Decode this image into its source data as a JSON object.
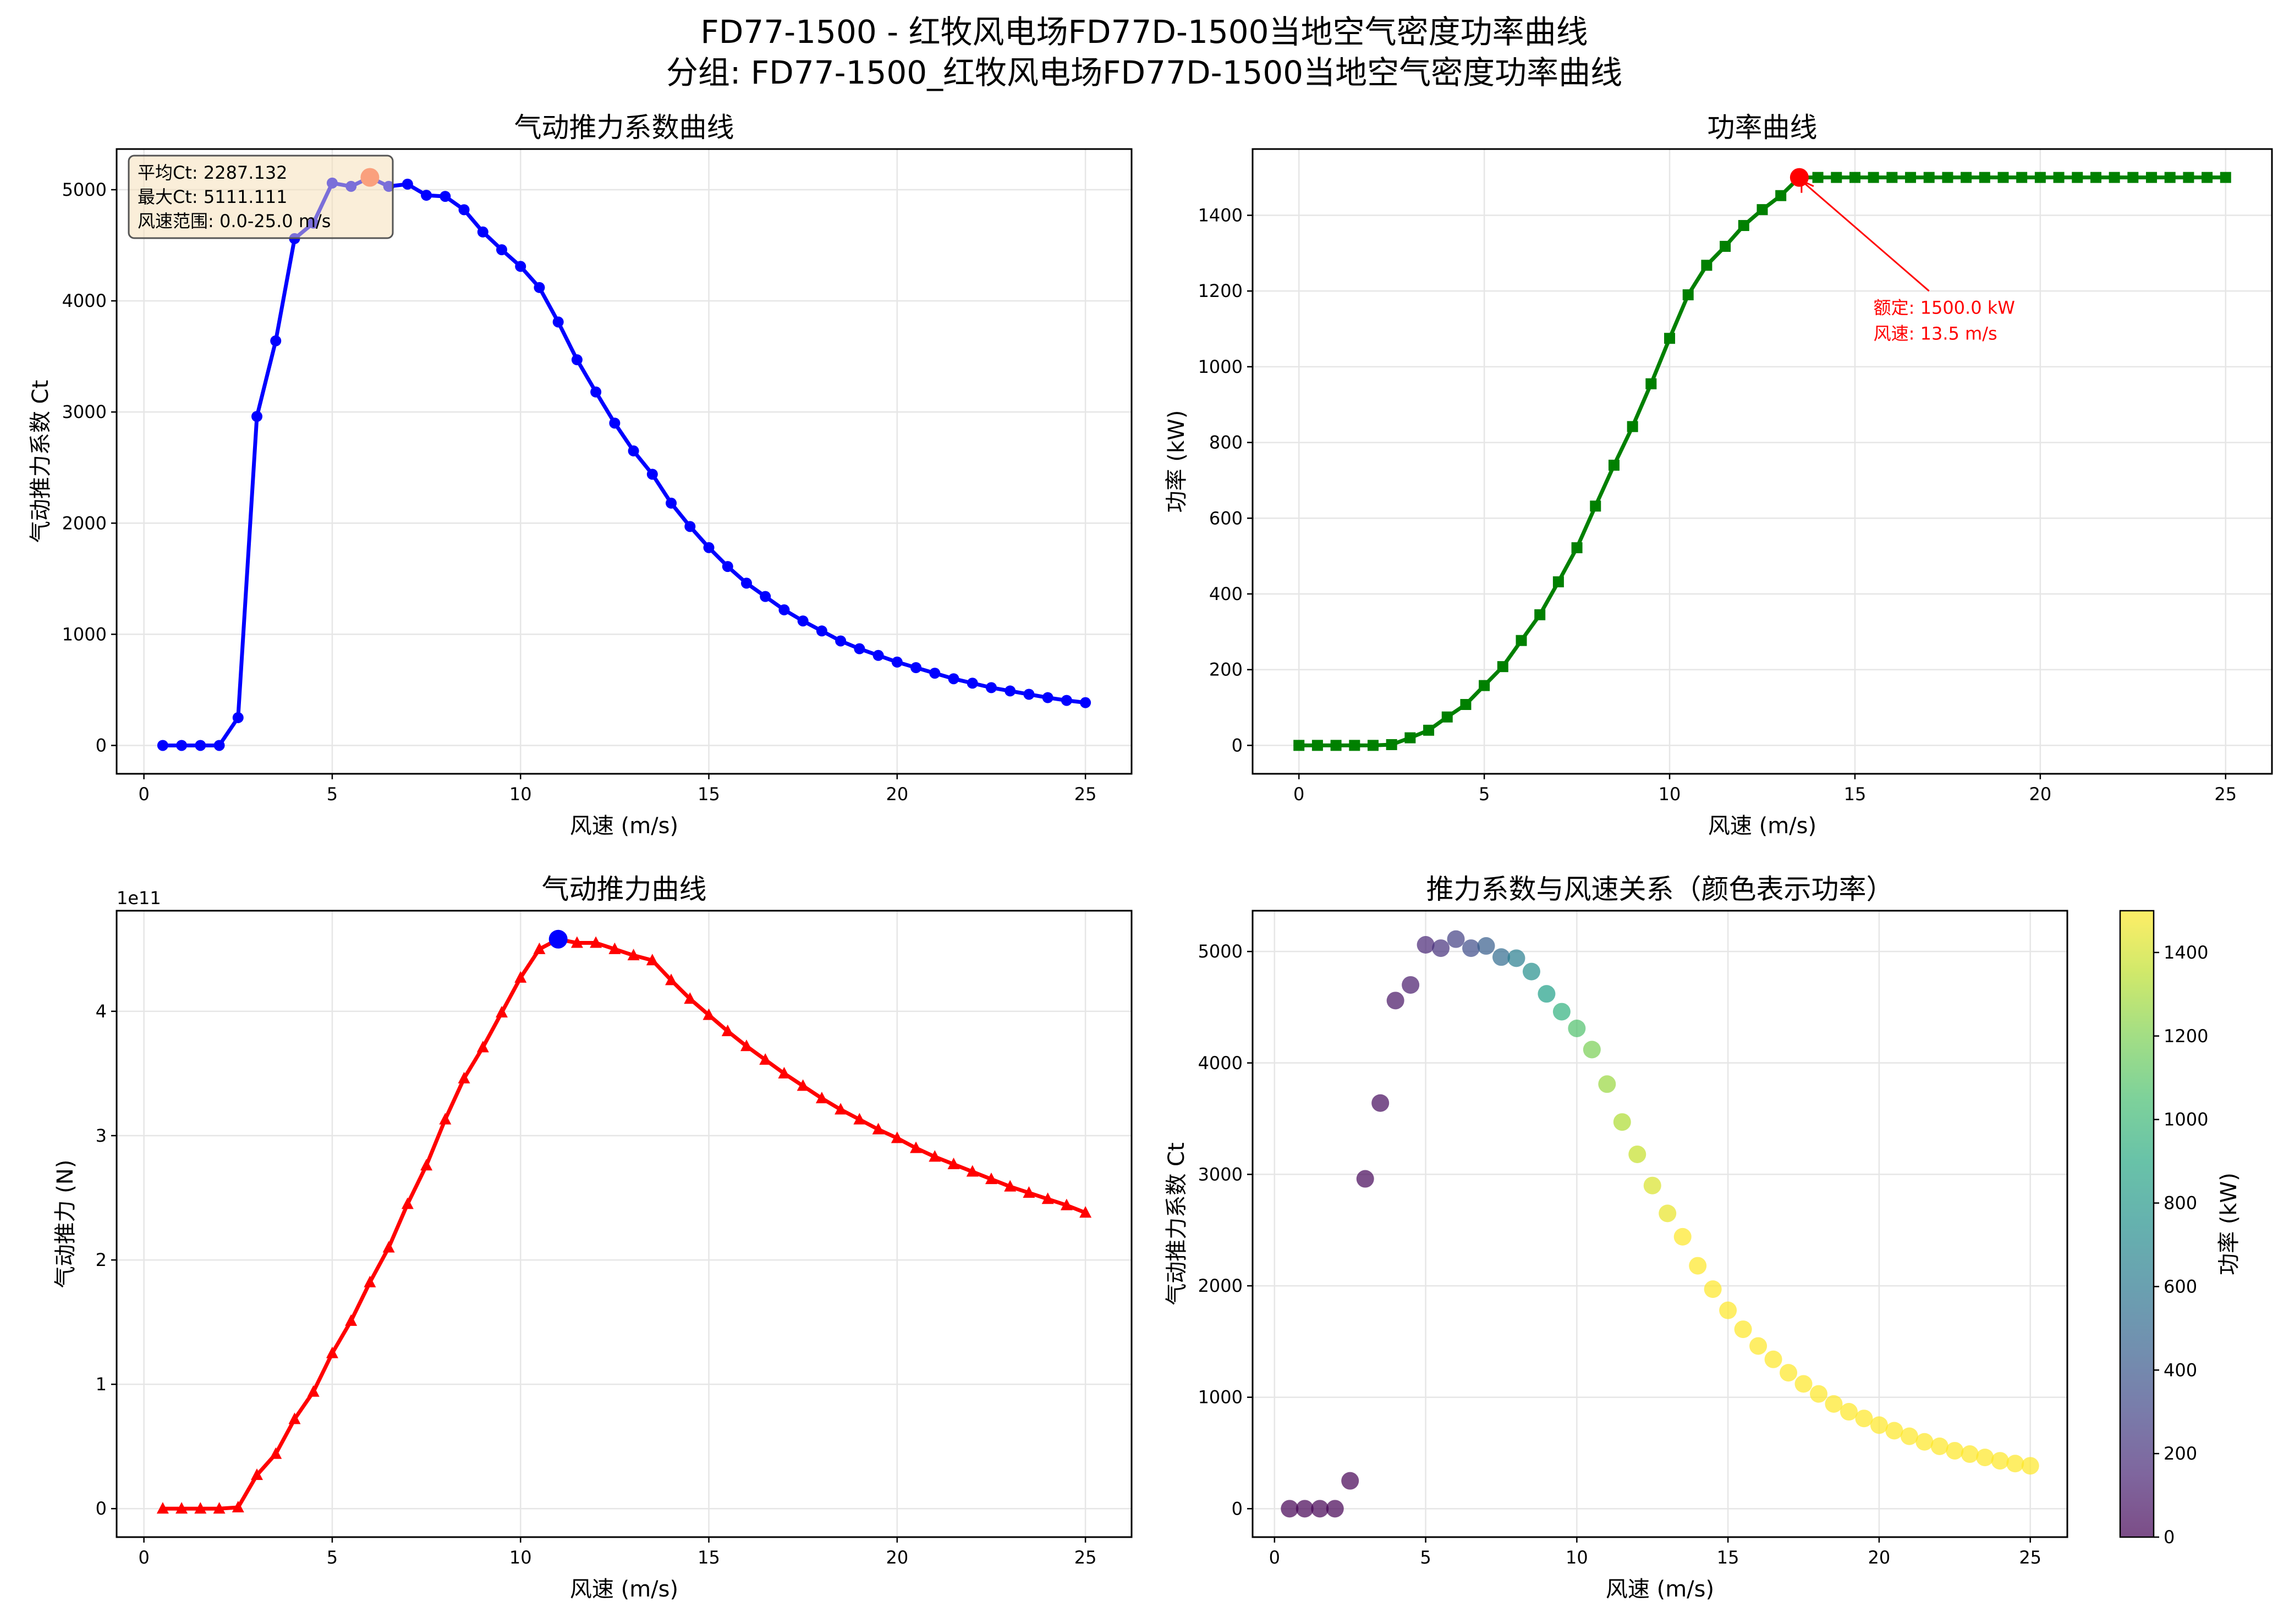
{
  "figure": {
    "title_line1": "FD77-1500 - 红牧风电场FD77D-1500当地空气密度功率曲线",
    "title_line2": "分组: FD77-1500_红牧风电场FD77D-1500当地空气密度功率曲线"
  },
  "chart_data": [
    {
      "id": "ct",
      "type": "line",
      "title": "气动推力系数曲线",
      "xlabel": "风速 (m/s)",
      "ylabel": "气动推力系数 Ct",
      "color": "#0000FF",
      "marker": "circle",
      "xlim": [
        -0.725,
        26.225
      ],
      "ylim": [
        -255,
        5366
      ],
      "xticks": [
        0,
        5,
        10,
        15,
        20,
        25
      ],
      "yticks": [
        0,
        1000,
        2000,
        3000,
        4000,
        5000
      ],
      "grid": true,
      "x": [
        0.5,
        1,
        1.5,
        2,
        2.5,
        3,
        3.5,
        4,
        4.5,
        5,
        5.5,
        6,
        6.5,
        7,
        7.5,
        8,
        8.5,
        9,
        9.5,
        10,
        10.5,
        11,
        11.5,
        12,
        12.5,
        13,
        13.5,
        14,
        14.5,
        15,
        15.5,
        16,
        16.5,
        17,
        17.5,
        18,
        18.5,
        19,
        19.5,
        20,
        20.5,
        21,
        21.5,
        22,
        22.5,
        23,
        23.5,
        24,
        24.5,
        25
      ],
      "y": [
        0,
        0,
        0,
        0,
        250,
        2960,
        3640,
        4560,
        4700,
        5060,
        5030,
        5111,
        5030,
        5050,
        4950,
        4940,
        4820,
        4620,
        4460,
        4310,
        4120,
        3810,
        3470,
        3180,
        2900,
        2650,
        2440,
        2180,
        1970,
        1780,
        1610,
        1460,
        1340,
        1220,
        1120,
        1030,
        940,
        870,
        810,
        750,
        700,
        650,
        600,
        560,
        520,
        490,
        460,
        430,
        405,
        385
      ],
      "highlight": {
        "x": 6,
        "y": 5111.111,
        "color": "#FF6347"
      },
      "stats_box": {
        "lines": [
          "平均Ct: 2287.132",
          "最大Ct: 5111.111",
          "风速范围: 0.0-25.0 m/s"
        ],
        "background": "#F5DEB3"
      }
    },
    {
      "id": "power",
      "type": "line",
      "title": "功率曲线",
      "xlabel": "风速 (m/s)",
      "ylabel": "功率 (kW)",
      "color": "#008000",
      "marker": "square",
      "xlim": [
        -1.25,
        26.25
      ],
      "ylim": [
        -75,
        1575
      ],
      "xticks": [
        0,
        5,
        10,
        15,
        20,
        25
      ],
      "yticks": [
        0,
        200,
        400,
        600,
        800,
        1000,
        1200,
        1400
      ],
      "grid": true,
      "x": [
        0,
        0.5,
        1,
        1.5,
        2,
        2.5,
        3,
        3.5,
        4,
        4.5,
        5,
        5.5,
        6,
        6.5,
        7,
        7.5,
        8,
        8.5,
        9,
        9.5,
        10,
        10.5,
        11,
        11.5,
        12,
        12.5,
        13,
        13.5,
        14,
        14.5,
        15,
        15.5,
        16,
        16.5,
        17,
        17.5,
        18,
        18.5,
        19,
        19.5,
        20,
        20.5,
        21,
        21.5,
        22,
        22.5,
        23,
        23.5,
        24,
        24.5,
        25
      ],
      "y": [
        0,
        0,
        0,
        0,
        0,
        2,
        20,
        40,
        75,
        108,
        158,
        208,
        277,
        345,
        432,
        522,
        632,
        740,
        842,
        955,
        1075,
        1190,
        1268,
        1318,
        1373,
        1415,
        1452,
        1500,
        1500,
        1500,
        1500,
        1500,
        1500,
        1500,
        1500,
        1500,
        1500,
        1500,
        1500,
        1500,
        1500,
        1500,
        1500,
        1500,
        1500,
        1500,
        1500,
        1500,
        1500,
        1500,
        1500
      ],
      "highlight": {
        "x": 13.5,
        "y": 1500,
        "color": "#FF0000"
      },
      "annotation": {
        "lines": [
          "额定: 1500.0 kW",
          "风速: 13.5 m/s"
        ],
        "text_at": [
          15.5,
          1140
        ],
        "arrow_from": [
          17,
          1200
        ],
        "arrow_to": [
          13.5,
          1500
        ],
        "color": "#FF0000"
      }
    },
    {
      "id": "thrust",
      "type": "line",
      "title": "气动推力曲线",
      "xlabel": "风速 (m/s)",
      "ylabel": "气动推力 (N)",
      "y_offset_label": "1e11",
      "color": "#FF0000",
      "marker": "triangle",
      "xlim": [
        -0.725,
        26.225
      ],
      "ylim": [
        -0.229,
        4.809
      ],
      "xticks": [
        0,
        5,
        10,
        15,
        20,
        25
      ],
      "yticks": [
        0,
        1,
        2,
        3,
        4
      ],
      "grid": true,
      "x": [
        0.5,
        1,
        1.5,
        2,
        2.5,
        3,
        3.5,
        4,
        4.5,
        5,
        5.5,
        6,
        6.5,
        7,
        7.5,
        8,
        8.5,
        9,
        9.5,
        10,
        10.5,
        11,
        11.5,
        12,
        12.5,
        13,
        13.5,
        14,
        14.5,
        15,
        15.5,
        16,
        16.5,
        17,
        17.5,
        18,
        18.5,
        19,
        19.5,
        20,
        20.5,
        21,
        21.5,
        22,
        22.5,
        23,
        23.5,
        24,
        24.5,
        25
      ],
      "y": [
        0,
        0,
        0,
        0,
        0.01,
        0.27,
        0.44,
        0.72,
        0.94,
        1.25,
        1.51,
        1.82,
        2.1,
        2.45,
        2.76,
        3.13,
        3.46,
        3.71,
        3.99,
        4.27,
        4.5,
        4.58,
        4.55,
        4.55,
        4.5,
        4.45,
        4.41,
        4.25,
        4.1,
        3.97,
        3.84,
        3.72,
        3.61,
        3.5,
        3.4,
        3.3,
        3.21,
        3.13,
        3.05,
        2.98,
        2.9,
        2.83,
        2.77,
        2.71,
        2.65,
        2.59,
        2.54,
        2.49,
        2.44,
        2.38
      ],
      "highlight": {
        "x": 11,
        "y": 4.58,
        "color": "#0000FF"
      }
    },
    {
      "id": "scatter",
      "type": "scatter",
      "title": "推力系数与风速关系（颜色表示功率）",
      "xlabel": "风速 (m/s)",
      "ylabel": "气动推力系数 Ct",
      "colormap": "viridis",
      "alpha": 0.7,
      "xlim": [
        -0.725,
        26.225
      ],
      "ylim": [
        -255,
        5366
      ],
      "xticks": [
        0,
        5,
        10,
        15,
        20,
        25
      ],
      "yticks": [
        0,
        1000,
        2000,
        3000,
        4000,
        5000
      ],
      "grid": true,
      "colorbar": {
        "label": "功率 (kW)",
        "range": [
          0,
          1500
        ],
        "ticks": [
          0,
          200,
          400,
          600,
          800,
          1000,
          1200,
          1400
        ]
      },
      "x": [
        0.5,
        1,
        1.5,
        2,
        2.5,
        3,
        3.5,
        4,
        4.5,
        5,
        5.5,
        6,
        6.5,
        7,
        7.5,
        8,
        8.5,
        9,
        9.5,
        10,
        10.5,
        11,
        11.5,
        12,
        12.5,
        13,
        13.5,
        14,
        14.5,
        15,
        15.5,
        16,
        16.5,
        17,
        17.5,
        18,
        18.5,
        19,
        19.5,
        20,
        20.5,
        21,
        21.5,
        22,
        22.5,
        23,
        23.5,
        24,
        24.5,
        25
      ],
      "y": [
        0,
        0,
        0,
        0,
        250,
        2960,
        3640,
        4560,
        4700,
        5060,
        5030,
        5111,
        5030,
        5050,
        4950,
        4940,
        4820,
        4620,
        4460,
        4310,
        4120,
        3810,
        3470,
        3180,
        2900,
        2650,
        2440,
        2180,
        1970,
        1780,
        1610,
        1460,
        1340,
        1220,
        1120,
        1030,
        940,
        870,
        810,
        750,
        700,
        650,
        600,
        560,
        520,
        490,
        460,
        430,
        405,
        385
      ],
      "c": [
        0,
        0,
        0,
        0,
        2,
        20,
        40,
        75,
        108,
        158,
        208,
        277,
        345,
        432,
        522,
        632,
        740,
        842,
        955,
        1075,
        1190,
        1268,
        1318,
        1373,
        1415,
        1452,
        1500,
        1500,
        1500,
        1500,
        1500,
        1500,
        1500,
        1500,
        1500,
        1500,
        1500,
        1500,
        1500,
        1500,
        1500,
        1500,
        1500,
        1500,
        1500,
        1500,
        1500,
        1500,
        1500,
        1500
      ]
    }
  ]
}
